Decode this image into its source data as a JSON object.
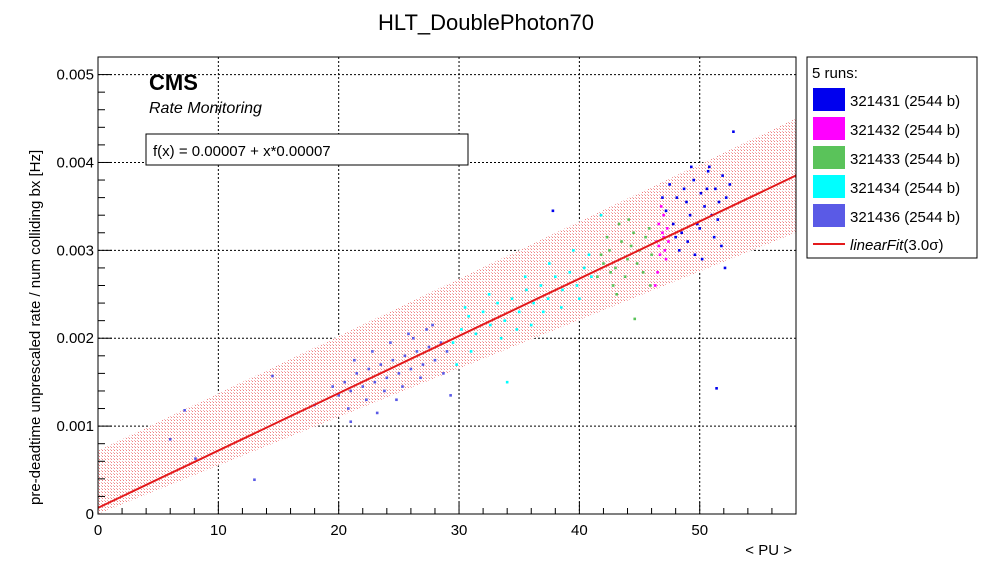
{
  "chart_data": {
    "type": "scatter",
    "title": "HLT_DoublePhoton70",
    "xlabel": "< PU >",
    "ylabel": "pre-deadtime unprescaled rate / num colliding bx [Hz]",
    "xlim": [
      0,
      58
    ],
    "ylim": [
      0,
      0.0052
    ],
    "x_ticks": [
      0,
      10,
      20,
      30,
      40,
      50
    ],
    "y_ticks": [
      0,
      0.001,
      0.002,
      0.003,
      0.004,
      0.005
    ],
    "y_tick_labels": [
      "0",
      "0.001",
      "0.002",
      "0.003",
      "0.004",
      "0.005"
    ],
    "grid": true,
    "experiment_label": "CMS",
    "sub_label": "Rate Monitoring",
    "fit_label": "f(x) = 0.00007 + x*0.00007",
    "fit": {
      "name": "linearFit",
      "sigma_label": "(3.0σ)",
      "intercept": 7e-05,
      "slope": 6.52e-05,
      "band_halfwidth": 0.00065,
      "color": "#e31a1c"
    },
    "legend_header": "5 runs:",
    "legend_position": "right-outside",
    "series": [
      {
        "name": "321431 (2544 b)",
        "color": "#0000ee",
        "points": [
          [
            47.2,
            0.00345
          ],
          [
            47.8,
            0.0033
          ],
          [
            48.1,
            0.0036
          ],
          [
            48.5,
            0.0032
          ],
          [
            48.9,
            0.00355
          ],
          [
            49.2,
            0.0034
          ],
          [
            49.5,
            0.0038
          ],
          [
            49.8,
            0.0033
          ],
          [
            50.1,
            0.00365
          ],
          [
            50.4,
            0.0035
          ],
          [
            50.7,
            0.0039
          ],
          [
            51.0,
            0.0034
          ],
          [
            51.3,
            0.0037
          ],
          [
            51.6,
            0.00355
          ],
          [
            51.9,
            0.00385
          ],
          [
            52.2,
            0.0036
          ],
          [
            48.3,
            0.003
          ],
          [
            49.0,
            0.0031
          ],
          [
            50.0,
            0.00325
          ],
          [
            51.2,
            0.00315
          ],
          [
            52.5,
            0.00375
          ],
          [
            49.6,
            0.00295
          ],
          [
            50.8,
            0.00395
          ],
          [
            48.7,
            0.0037
          ],
          [
            51.5,
            0.00335
          ],
          [
            52.8,
            0.00435
          ],
          [
            51.4,
            0.00143
          ],
          [
            52.1,
            0.0028
          ],
          [
            37.8,
            0.00345
          ],
          [
            47.5,
            0.00375
          ],
          [
            50.2,
            0.0029
          ],
          [
            46.9,
            0.0036
          ],
          [
            49.3,
            0.00395
          ],
          [
            51.8,
            0.00305
          ],
          [
            48.0,
            0.00315
          ],
          [
            50.6,
            0.0037
          ]
        ]
      },
      {
        "name": "321432 (2544 b)",
        "color": "#ff00ff",
        "points": [
          [
            46.4,
            0.0031
          ],
          [
            46.6,
            0.0033
          ],
          [
            46.7,
            0.00295
          ],
          [
            46.9,
            0.0032
          ],
          [
            47.0,
            0.0034
          ],
          [
            47.1,
            0.003
          ],
          [
            47.3,
            0.00325
          ],
          [
            47.4,
            0.0031
          ],
          [
            46.5,
            0.00275
          ],
          [
            46.8,
            0.0035
          ],
          [
            47.2,
            0.0029
          ],
          [
            46.3,
            0.0026
          ],
          [
            47.0,
            0.00315
          ],
          [
            46.6,
            0.00305
          ]
        ]
      },
      {
        "name": "321433 (2544 b)",
        "color": "#5ac35a",
        "points": [
          [
            41.5,
            0.0027
          ],
          [
            42.0,
            0.00285
          ],
          [
            42.5,
            0.003
          ],
          [
            43.0,
            0.0028
          ],
          [
            43.5,
            0.0031
          ],
          [
            44.0,
            0.0029
          ],
          [
            44.5,
            0.0032
          ],
          [
            45.0,
            0.003
          ],
          [
            45.5,
            0.00315
          ],
          [
            46.0,
            0.00295
          ],
          [
            42.8,
            0.0026
          ],
          [
            43.8,
            0.0027
          ],
          [
            44.8,
            0.00285
          ],
          [
            45.8,
            0.00325
          ],
          [
            42.3,
            0.00315
          ],
          [
            43.3,
            0.0033
          ],
          [
            44.3,
            0.00305
          ],
          [
            45.3,
            0.00275
          ],
          [
            41.8,
            0.00295
          ],
          [
            44.6,
            0.00222
          ],
          [
            43.1,
            0.0025
          ],
          [
            45.9,
            0.0026
          ],
          [
            42.6,
            0.00275
          ],
          [
            44.1,
            0.00335
          ]
        ]
      },
      {
        "name": "321434 (2544 b)",
        "color": "#00ffff",
        "points": [
          [
            29.5,
            0.00195
          ],
          [
            30.2,
            0.0021
          ],
          [
            30.8,
            0.00225
          ],
          [
            31.4,
            0.00205
          ],
          [
            32.0,
            0.0023
          ],
          [
            32.6,
            0.00215
          ],
          [
            33.2,
            0.0024
          ],
          [
            33.8,
            0.0022
          ],
          [
            34.4,
            0.00245
          ],
          [
            35.0,
            0.0023
          ],
          [
            35.6,
            0.00255
          ],
          [
            36.2,
            0.0024
          ],
          [
            36.8,
            0.0026
          ],
          [
            37.4,
            0.00245
          ],
          [
            38.0,
            0.0027
          ],
          [
            38.6,
            0.00255
          ],
          [
            39.2,
            0.00275
          ],
          [
            39.8,
            0.0026
          ],
          [
            40.4,
            0.0028
          ],
          [
            41.0,
            0.0027
          ],
          [
            31.0,
            0.00185
          ],
          [
            33.5,
            0.002
          ],
          [
            36.0,
            0.00215
          ],
          [
            38.5,
            0.00235
          ],
          [
            40.0,
            0.00245
          ],
          [
            32.5,
            0.0025
          ],
          [
            35.5,
            0.0027
          ],
          [
            37.5,
            0.00285
          ],
          [
            39.5,
            0.003
          ],
          [
            34.0,
            0.0015
          ],
          [
            41.8,
            0.0034
          ],
          [
            30.5,
            0.00235
          ],
          [
            34.8,
            0.0021
          ],
          [
            37.0,
            0.0023
          ],
          [
            40.8,
            0.00295
          ],
          [
            29.8,
            0.0017
          ]
        ]
      },
      {
        "name": "321436 (2544 b)",
        "color": "#5a5ae6",
        "points": [
          [
            20.0,
            0.00135
          ],
          [
            20.5,
            0.0015
          ],
          [
            21.0,
            0.0014
          ],
          [
            21.5,
            0.0016
          ],
          [
            22.0,
            0.00145
          ],
          [
            22.5,
            0.00165
          ],
          [
            23.0,
            0.0015
          ],
          [
            23.5,
            0.0017
          ],
          [
            24.0,
            0.00155
          ],
          [
            24.5,
            0.00175
          ],
          [
            25.0,
            0.0016
          ],
          [
            25.5,
            0.0018
          ],
          [
            26.0,
            0.00165
          ],
          [
            26.5,
            0.00185
          ],
          [
            27.0,
            0.0017
          ],
          [
            27.5,
            0.0019
          ],
          [
            28.0,
            0.00175
          ],
          [
            28.5,
            0.00195
          ],
          [
            29.0,
            0.00185
          ],
          [
            20.8,
            0.0012
          ],
          [
            22.3,
            0.0013
          ],
          [
            23.8,
            0.0014
          ],
          [
            25.3,
            0.00145
          ],
          [
            26.8,
            0.00155
          ],
          [
            21.3,
            0.00175
          ],
          [
            22.8,
            0.00185
          ],
          [
            24.3,
            0.00195
          ],
          [
            25.8,
            0.00205
          ],
          [
            27.3,
            0.0021
          ],
          [
            19.5,
            0.00145
          ],
          [
            28.7,
            0.0016
          ],
          [
            21.0,
            0.00105
          ],
          [
            26.2,
            0.002
          ],
          [
            23.2,
            0.00115
          ],
          [
            27.8,
            0.00215
          ],
          [
            24.8,
            0.0013
          ],
          [
            8.1,
            0.00063
          ],
          [
            7.2,
            0.00118
          ],
          [
            6.0,
            0.00085
          ],
          [
            14.5,
            0.00157
          ],
          [
            13.0,
            0.00039
          ],
          [
            18.0,
            0.00124
          ],
          [
            29.3,
            0.00135
          ]
        ]
      }
    ]
  }
}
